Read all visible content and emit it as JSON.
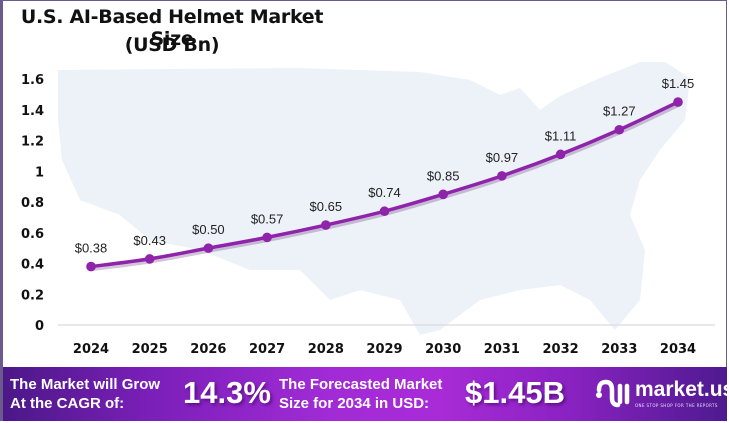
{
  "chart_data": {
    "type": "line",
    "title": "U.S. AI-Based Helmet Market Size",
    "subtitle": "(USD Bn)",
    "xlabel": "",
    "ylabel": "",
    "categories": [
      "2024",
      "2025",
      "2026",
      "2027",
      "2028",
      "2029",
      "2030",
      "2031",
      "2032",
      "2033",
      "2034"
    ],
    "series": [
      {
        "name": "Market Size (USD Bn)",
        "values": [
          0.38,
          0.43,
          0.5,
          0.57,
          0.65,
          0.74,
          0.85,
          0.97,
          1.11,
          1.27,
          1.45
        ],
        "labels": [
          "$0.38",
          "$0.43",
          "$0.50",
          "$0.57",
          "$0.65",
          "$0.74",
          "$0.85",
          "$0.97",
          "$1.11",
          "$1.27",
          "$1.45"
        ],
        "color": "#8e24aa"
      }
    ],
    "ylim": [
      0,
      1.6
    ],
    "yticks": [
      "0",
      "0.2",
      "0.4",
      "0.6",
      "0.8",
      "1",
      "1.2",
      "1.4",
      "1.6"
    ],
    "ytick_values": [
      0,
      0.2,
      0.4,
      0.6,
      0.8,
      1,
      1.2,
      1.4,
      1.6
    ],
    "grid": false,
    "legend": "none",
    "background": "US map silhouette"
  },
  "title": {
    "line1": "U.S. AI-Based Helmet Market Size",
    "line2": "(USD Bn)"
  },
  "banner": {
    "cagr_text_line1": "The Market will Grow",
    "cagr_text_line2": "At the CAGR of:",
    "cagr_value": "14.3%",
    "forecast_text_line1": "The Forecasted Market",
    "forecast_text_line2": "Size for 2034 in USD:",
    "forecast_value": "$1.45B",
    "logo_text": "market.us",
    "logo_tagline": "ONE STOP SHOP FOR THE REPORTS"
  },
  "colors": {
    "line": "#8e24aa",
    "map": "#edf1f8",
    "banner_dark": "#4b1887",
    "banner_bright": "#a92bd8"
  }
}
